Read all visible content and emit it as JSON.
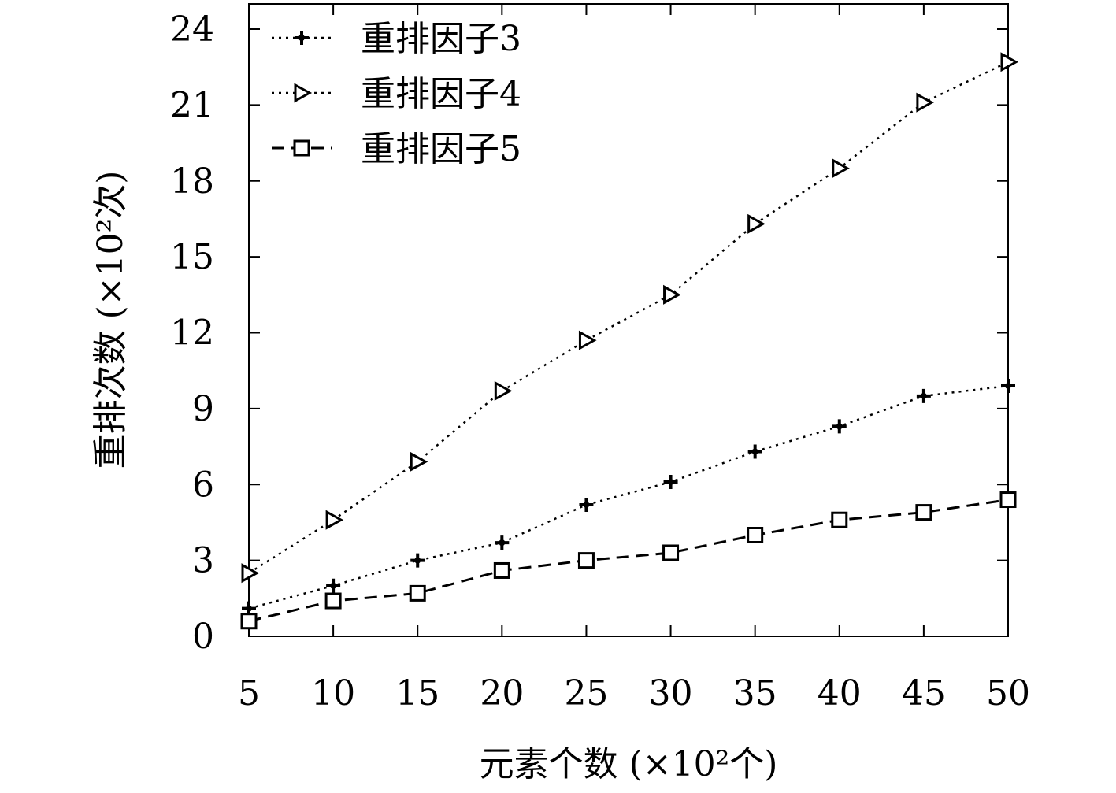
{
  "chart_data": {
    "type": "line",
    "xlabel": "元素个数 (×10²个)",
    "ylabel": "重排次数 (×10²次)",
    "x": [
      5,
      10,
      15,
      20,
      25,
      30,
      35,
      40,
      45,
      50
    ],
    "xlim": [
      5,
      50
    ],
    "ylim": [
      0,
      24
    ],
    "xticks": [
      5,
      10,
      15,
      20,
      25,
      30,
      35,
      40,
      45,
      50
    ],
    "yticks": [
      0,
      3,
      6,
      9,
      12,
      15,
      18,
      21,
      24
    ],
    "grid": false,
    "legend_position": "top-left",
    "series": [
      {
        "name": "重排因子3",
        "marker": "plus",
        "line_style": "dotted",
        "color": "#000000",
        "values": [
          1.1,
          2.0,
          3.0,
          3.7,
          5.2,
          6.1,
          7.3,
          8.3,
          9.5,
          9.9
        ]
      },
      {
        "name": "重排因子4",
        "marker": "triangle-right",
        "line_style": "dotted",
        "color": "#000000",
        "values": [
          2.5,
          4.6,
          6.9,
          9.7,
          11.7,
          13.5,
          16.3,
          18.5,
          21.1,
          22.7
        ]
      },
      {
        "name": "重排因子5",
        "marker": "square",
        "line_style": "dashed",
        "color": "#000000",
        "values": [
          0.6,
          1.4,
          1.7,
          2.6,
          3.0,
          3.3,
          4.0,
          4.6,
          4.9,
          5.4
        ]
      }
    ]
  }
}
